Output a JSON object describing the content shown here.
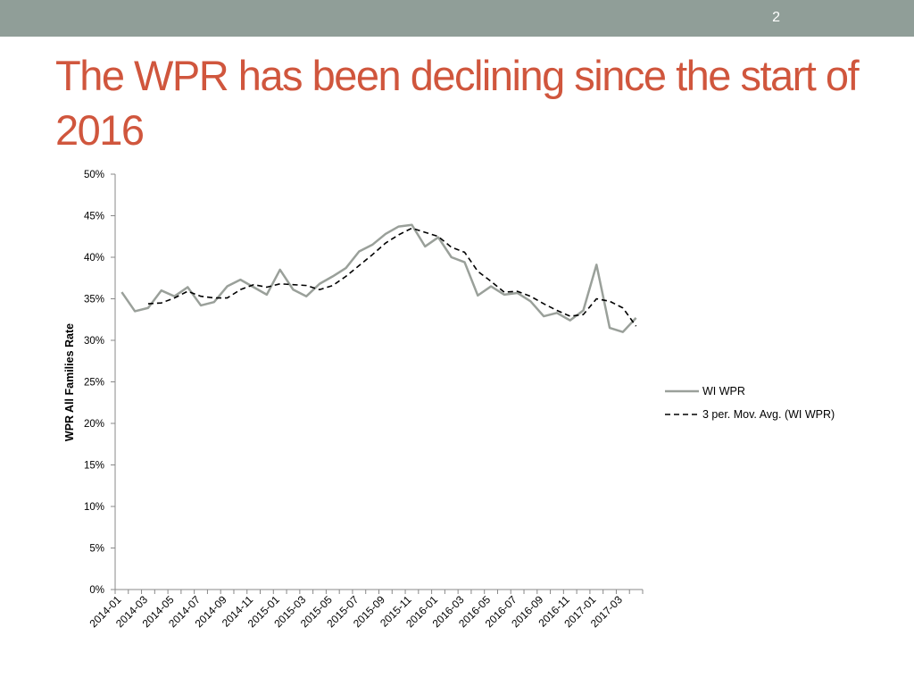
{
  "slide": {
    "number": "2",
    "title": "The WPR has been declining since the start of 2016"
  },
  "colors": {
    "top_bar": "#909e98",
    "title": "#d0563d",
    "wi_wpr_line": "#9aa09a",
    "moving_avg_line": "#000000"
  },
  "chart_data": {
    "type": "line",
    "title": "",
    "ylabel": "WPR All Families Rate",
    "xlabel": "",
    "ylim": [
      0,
      0.5
    ],
    "y_ticks": [
      "0%",
      "5%",
      "10%",
      "15%",
      "20%",
      "25%",
      "30%",
      "35%",
      "40%",
      "45%",
      "50%"
    ],
    "grid": false,
    "legend_position": "right",
    "x": [
      "2014-01",
      "2014-02",
      "2014-03",
      "2014-04",
      "2014-05",
      "2014-06",
      "2014-07",
      "2014-08",
      "2014-09",
      "2014-10",
      "2014-11",
      "2014-12",
      "2015-01",
      "2015-02",
      "2015-03",
      "2015-04",
      "2015-05",
      "2015-06",
      "2015-07",
      "2015-08",
      "2015-09",
      "2015-10",
      "2015-11",
      "2015-12",
      "2016-01",
      "2016-02",
      "2016-03",
      "2016-04",
      "2016-05",
      "2016-06",
      "2016-07",
      "2016-08",
      "2016-09",
      "2016-10",
      "2016-11",
      "2016-12",
      "2017-01",
      "2017-02",
      "2017-03",
      "2017-04"
    ],
    "x_tick_labels": [
      "2014-01",
      "2014-03",
      "2014-05",
      "2014-07",
      "2014-09",
      "2014-11",
      "2015-01",
      "2015-03",
      "2015-05",
      "2015-07",
      "2015-09",
      "2015-11",
      "2016-01",
      "2016-03",
      "2016-05",
      "2016-07",
      "2016-09",
      "2016-11",
      "2017-01",
      "2017-03"
    ],
    "series": [
      {
        "name": "WI WPR",
        "style": "solid",
        "values": [
          0.358,
          0.335,
          0.339,
          0.36,
          0.353,
          0.364,
          0.342,
          0.346,
          0.365,
          0.373,
          0.364,
          0.355,
          0.385,
          0.361,
          0.353,
          0.368,
          0.377,
          0.387,
          0.407,
          0.415,
          0.428,
          0.437,
          0.439,
          0.413,
          0.424,
          0.4,
          0.394,
          0.354,
          0.365,
          0.355,
          0.357,
          0.347,
          0.329,
          0.333,
          0.324,
          0.336,
          0.391,
          0.315,
          0.31,
          0.327
        ]
      },
      {
        "name": "3 per. Mov. Avg. (WI WPR)",
        "style": "dashed",
        "values": [
          null,
          null,
          0.344,
          0.345,
          0.351,
          0.359,
          0.353,
          0.351,
          0.351,
          0.361,
          0.367,
          0.364,
          0.368,
          0.367,
          0.366,
          0.361,
          0.366,
          0.377,
          0.39,
          0.403,
          0.417,
          0.427,
          0.435,
          0.43,
          0.425,
          0.412,
          0.406,
          0.383,
          0.371,
          0.358,
          0.359,
          0.353,
          0.344,
          0.336,
          0.329,
          0.331,
          0.35,
          0.347,
          0.339,
          0.317
        ]
      }
    ]
  }
}
